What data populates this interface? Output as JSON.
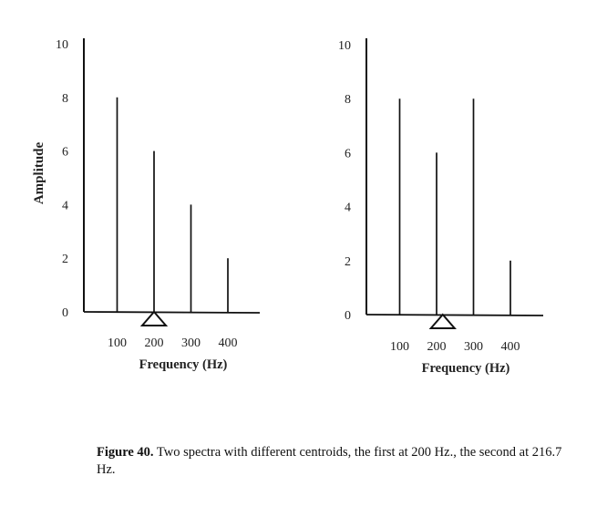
{
  "chart_data": [
    {
      "type": "stem",
      "ylabel": "Amplitude",
      "xlabel": "Frequency (Hz)",
      "x_ticks": [
        "100",
        "200",
        "300",
        "400"
      ],
      "y_ticks": [
        "0",
        "2",
        "4",
        "6",
        "8",
        "10"
      ],
      "ylim": [
        0,
        10
      ],
      "x": [
        100,
        200,
        300,
        400
      ],
      "values": [
        8,
        6,
        4,
        2
      ],
      "centroid": 200,
      "centroid_marker": "triangle"
    },
    {
      "type": "stem",
      "ylabel": "",
      "xlabel": "Frequency (Hz)",
      "x_ticks": [
        "100",
        "200",
        "300",
        "400"
      ],
      "y_ticks": [
        "0",
        "2",
        "4",
        "6",
        "8",
        "10"
      ],
      "ylim": [
        0,
        10
      ],
      "x": [
        100,
        200,
        300,
        400
      ],
      "values": [
        8,
        6,
        8,
        2
      ],
      "centroid": 216.7,
      "centroid_marker": "triangle"
    }
  ],
  "caption": {
    "label": "Figure 40.",
    "text": " Two spectra with different centroids, the first at 200 Hz., the second at 216.7 Hz."
  },
  "colors": {
    "ink": "#111111",
    "background": "#ffffff"
  }
}
